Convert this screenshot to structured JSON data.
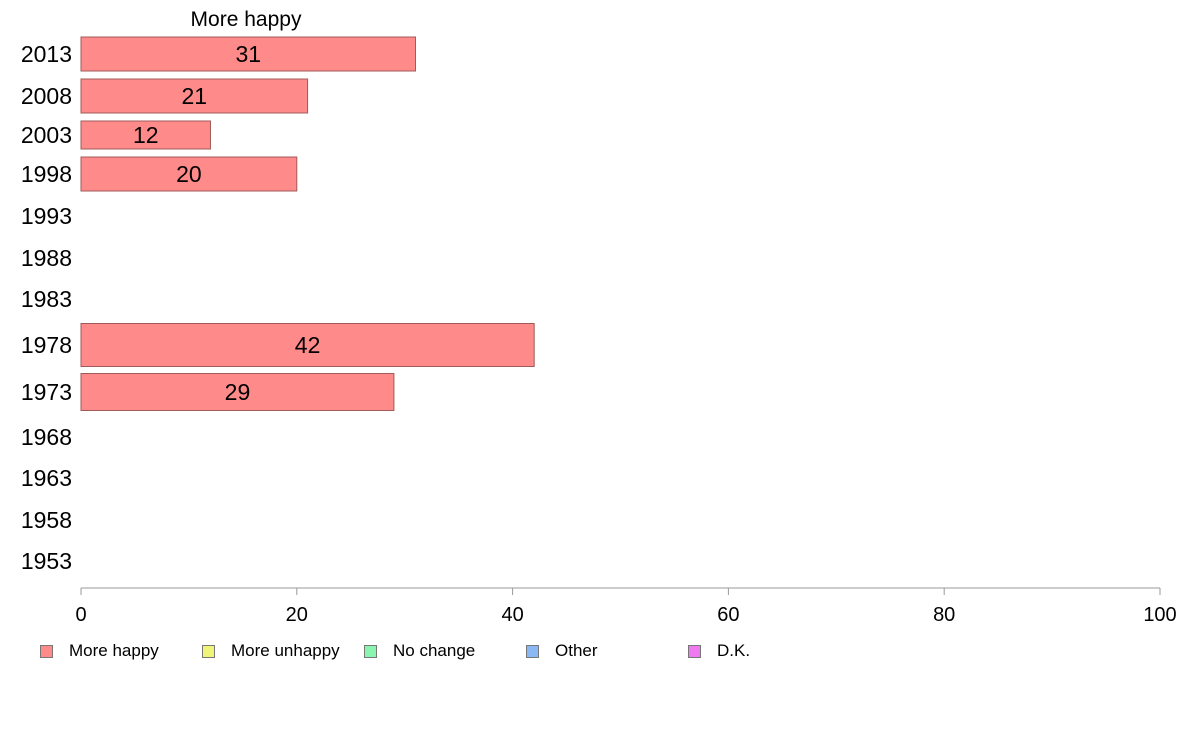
{
  "chart_data": {
    "type": "bar",
    "orientation": "horizontal",
    "title": "More happy",
    "categories": [
      "2013",
      "2008",
      "2003",
      "1998",
      "1993",
      "1988",
      "1983",
      "1978",
      "1973",
      "1968",
      "1963",
      "1958",
      "1953"
    ],
    "series": [
      {
        "name": "More happy",
        "color": "#ff8a8a",
        "values": [
          31,
          21,
          12,
          20,
          null,
          null,
          null,
          42,
          29,
          null,
          null,
          null,
          null
        ],
        "labels": [
          "31",
          "21",
          "12",
          "20",
          "",
          "",
          "",
          "42",
          "29",
          "",
          "",
          "",
          ""
        ]
      }
    ],
    "xlim": [
      0,
      100
    ],
    "xticks": [
      "0",
      "20",
      "40",
      "60",
      "80",
      "100"
    ],
    "grid": false,
    "legend": {
      "placement": "bottom",
      "entries": [
        {
          "name": "More happy",
          "color": "#ff8a8a"
        },
        {
          "name": "More unhappy",
          "color": "#f0f57a"
        },
        {
          "name": "No change",
          "color": "#8af5b0"
        },
        {
          "name": "Other",
          "color": "#8ab8f5"
        },
        {
          "name": "D.K.",
          "color": "#ef7af0"
        }
      ]
    }
  }
}
